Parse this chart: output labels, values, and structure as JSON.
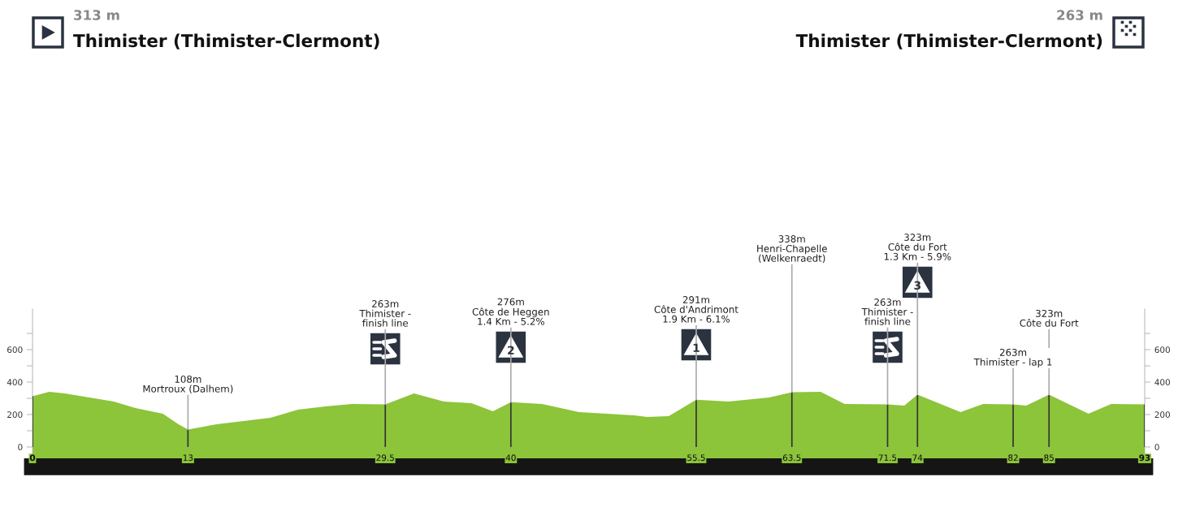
{
  "chart_data": {
    "type": "area",
    "annotations": [
      "313 m",
      "Thimister (Thimister-Clermont)",
      "263 m",
      "Thimister (Thimister-Clermont)",
      {
        "text": "108m\nMortroux (Dalhem)",
        "x": 13,
        "y": 108
      },
      {
        "text": "263m\nThimister -\nfinish line",
        "x": 29.5,
        "y": 263
      },
      {
        "text": "276m\nCôte de Heggen\n1.4 Km - 5.2%",
        "x": 40,
        "y": 276
      },
      {
        "text": "291m\nCôte d'Andrimont\n1.9 Km - 6.1%",
        "x": 55.5,
        "y": 291
      },
      {
        "text": "338m\nHenri-Chapelle\n(Welkenraedt)",
        "x": 63.5,
        "y": 338
      },
      {
        "text": "263m\nThimister -\nfinish line",
        "x": 71.5,
        "y": 263
      },
      {
        "text": "323m\nCôte du Fort\n1.3 Km - 5.9%",
        "x": 74,
        "y": 323
      },
      {
        "text": "263m\nThimister - lap 1",
        "x": 82,
        "y": 263
      },
      {
        "text": "323m\nCôte du Fort",
        "x": 85,
        "y": 323
      },
      "2",
      "1",
      "3"
    ],
    "series": [
      {
        "color": "#8cc43a",
        "x": [
          0,
          1.4,
          2.7,
          6.8,
          8.6,
          10.9,
          12.2,
          13,
          15.4,
          19.9,
          22.2,
          24.5,
          26.7,
          29.5,
          31.9,
          34.4,
          36.7,
          38.5,
          40,
          42.6,
          45.7,
          50.3,
          51.4,
          53.2,
          55.5,
          58.2,
          61.6,
          63.5,
          65.9,
          67.9,
          71.5,
          72.9,
          74,
          77.6,
          79.5,
          82,
          83.1,
          85,
          88.3,
          90.2,
          93
        ],
        "values": [
          313,
          340,
          330,
          280,
          240,
          205,
          140,
          108,
          140,
          180,
          230,
          250,
          265,
          263,
          330,
          280,
          270,
          220,
          276,
          265,
          215,
          195,
          185,
          190,
          291,
          280,
          305,
          338,
          340,
          265,
          263,
          255,
          323,
          215,
          265,
          263,
          255,
          323,
          205,
          265,
          263
        ]
      }
    ],
    "xlim": [
      0,
      93
    ],
    "xticks": [
      0,
      13,
      29.5,
      40,
      55.5,
      63.5,
      71.5,
      74,
      82,
      85,
      93
    ],
    "ylim": [
      -70,
      850
    ],
    "yticks": [
      0,
      {
        "value": 100,
        "label": null
      },
      200,
      {
        "value": 300,
        "label": null
      },
      400,
      {
        "value": 500,
        "label": null
      },
      600,
      {
        "value": 700,
        "label": null
      }
    ],
    "y2lim": [
      -70,
      850
    ],
    "y2ticks": [
      0,
      {
        "value": 100,
        "label": null
      },
      200,
      {
        "value": 300,
        "label": null
      },
      400,
      {
        "value": 500,
        "label": null
      },
      600,
      {
        "value": 700,
        "label": null
      }
    ],
    "bands": [
      {
        "axis": "y",
        "from": -70,
        "to": 0,
        "color": "#8cc43a"
      }
    ],
    "grid": "x",
    "legend": false
  }
}
